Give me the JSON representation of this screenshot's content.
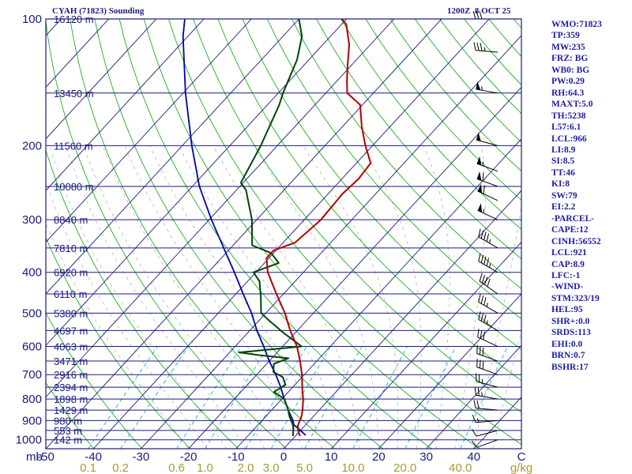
{
  "header": {
    "station": "CYAH (71823) Sounding",
    "time": "1200Z  8 OCT 25"
  },
  "indices": [
    "WMO:71823",
    "TP:359",
    "MW:235",
    "FRZ: BG",
    "WB0: BG",
    "PW:0.29",
    "RH:64.3",
    "MAXT:5.0",
    "TH:5238",
    "L57:6.1",
    "LCL:966",
    "LI:8.9",
    "SI:8.5",
    "TT:46",
    "KI:8",
    "SW:79",
    "EI:2.2",
    "-PARCEL-",
    "CAPE:12",
    "CINH:56552",
    "LCL:921",
    "CAP:8.9",
    "LFC:-1",
    "-WIND-",
    "STM:323/19",
    "HEL:95",
    "SHR+:0.0",
    "SRDS:113",
    "EHI:0.0",
    "BRN:0.7",
    "BSHR:17"
  ],
  "colors": {
    "pressure_lines": "#1a1a80",
    "temperature_lines": "#1a1a80",
    "dry_adiabats": "#00aa00",
    "moist_adiabats": "#aaaaaa",
    "mixing_ratio": "#00aabb",
    "temperature_trace": "#b00000",
    "dewpoint_trace": "#004400",
    "parcel_trace": "#0000aa",
    "wind_barbs": "#000000",
    "labels": "#1a1a80",
    "mixing_labels": "#aa9933"
  },
  "chart_data": {
    "type": "skew-t",
    "pressure_tick_labels": [
      "100",
      "200",
      "300",
      "400",
      "500",
      "600",
      "700",
      "800",
      "900",
      "1000"
    ],
    "pressure_unit_label": "mb",
    "temperature_tick_labels": [
      "-50",
      "-40",
      "-30",
      "-20",
      "-10",
      "0",
      "10",
      "20",
      "30",
      "40",
      "C"
    ],
    "mixing_ratio_labels": [
      "0.1",
      "0.2",
      "0.6",
      "1.0",
      "2.0",
      "3.0",
      "5.0",
      "10.0",
      "20.0",
      "40.0",
      "g/kg"
    ],
    "mixing_ratio_values": [
      0.1,
      0.2,
      0.6,
      1.0,
      2.0,
      3.0,
      5.0,
      10.0,
      20.0,
      40.0
    ],
    "height_labels": [
      {
        "p": 100,
        "label": "16120 m"
      },
      {
        "p": 150,
        "label": "13450 m"
      },
      {
        "p": 200,
        "label": "11560 m"
      },
      {
        "p": 250,
        "label": "10080 m"
      },
      {
        "p": 300,
        "label": "8840 m"
      },
      {
        "p": 350,
        "label": "7810 m"
      },
      {
        "p": 400,
        "label": "6920 m"
      },
      {
        "p": 450,
        "label": "6110 m"
      },
      {
        "p": 500,
        "label": "5380 m"
      },
      {
        "p": 550,
        "label": "4697 m"
      },
      {
        "p": 600,
        "label": "4063 m"
      },
      {
        "p": 650,
        "label": "3471 m"
      },
      {
        "p": 700,
        "label": "2916 m"
      },
      {
        "p": 750,
        "label": "2394 m"
      },
      {
        "p": 800,
        "label": "1898 m"
      },
      {
        "p": 850,
        "label": "1429 m"
      },
      {
        "p": 900,
        "label": "980 m"
      },
      {
        "p": 950,
        "label": "553 m"
      },
      {
        "p": 1000,
        "label": "142 m"
      }
    ],
    "p_range": [
      100,
      1050
    ],
    "t_range_at_base": [
      -50,
      50
    ],
    "temperature": [
      {
        "p": 980,
        "t": 1.0
      },
      {
        "p": 950,
        "t": -0.5
      },
      {
        "p": 925,
        "t": -1.5
      },
      {
        "p": 880,
        "t": -2.5
      },
      {
        "p": 850,
        "t": -3.5
      },
      {
        "p": 800,
        "t": -5.5
      },
      {
        "p": 760,
        "t": -7.5
      },
      {
        "p": 700,
        "t": -10.5
      },
      {
        "p": 650,
        "t": -13.5
      },
      {
        "p": 600,
        "t": -17.0
      },
      {
        "p": 550,
        "t": -21.5
      },
      {
        "p": 500,
        "t": -26.0
      },
      {
        "p": 450,
        "t": -31.5
      },
      {
        "p": 400,
        "t": -37.5
      },
      {
        "p": 370,
        "t": -40.5
      },
      {
        "p": 355,
        "t": -40.5
      },
      {
        "p": 340,
        "t": -37.5
      },
      {
        "p": 300,
        "t": -36.5
      },
      {
        "p": 260,
        "t": -37.0
      },
      {
        "p": 240,
        "t": -36.5
      },
      {
        "p": 220,
        "t": -37.0
      },
      {
        "p": 200,
        "t": -41.5
      },
      {
        "p": 180,
        "t": -46.0
      },
      {
        "p": 160,
        "t": -50.5
      },
      {
        "p": 150,
        "t": -55.5
      },
      {
        "p": 140,
        "t": -58.0
      },
      {
        "p": 130,
        "t": -60.5
      },
      {
        "p": 115,
        "t": -64.5
      },
      {
        "p": 103,
        "t": -69.0
      },
      {
        "p": 100,
        "t": -71.0
      }
    ],
    "dewpoint": [
      {
        "p": 980,
        "t": -0.5
      },
      {
        "p": 950,
        "t": -1.5
      },
      {
        "p": 925,
        "t": -2.5
      },
      {
        "p": 880,
        "t": -5.0
      },
      {
        "p": 850,
        "t": -6.5
      },
      {
        "p": 800,
        "t": -9.5
      },
      {
        "p": 770,
        "t": -13.0
      },
      {
        "p": 740,
        "t": -12.0
      },
      {
        "p": 710,
        "t": -14.0
      },
      {
        "p": 690,
        "t": -17.0
      },
      {
        "p": 660,
        "t": -18.5
      },
      {
        "p": 640,
        "t": -16.5
      },
      {
        "p": 630,
        "t": -23.0
      },
      {
        "p": 620,
        "t": -28.0
      },
      {
        "p": 600,
        "t": -16.0
      },
      {
        "p": 560,
        "t": -22.0
      },
      {
        "p": 520,
        "t": -28.0
      },
      {
        "p": 500,
        "t": -31.0
      },
      {
        "p": 460,
        "t": -34.0
      },
      {
        "p": 420,
        "t": -37.5
      },
      {
        "p": 400,
        "t": -40.5
      },
      {
        "p": 380,
        "t": -37.0
      },
      {
        "p": 360,
        "t": -40.5
      },
      {
        "p": 345,
        "t": -46.0
      },
      {
        "p": 300,
        "t": -51.0
      },
      {
        "p": 255,
        "t": -58.0
      },
      {
        "p": 245,
        "t": -60.5
      },
      {
        "p": 200,
        "t": -63.5
      },
      {
        "p": 160,
        "t": -67.5
      },
      {
        "p": 150,
        "t": -69.0
      },
      {
        "p": 125,
        "t": -72.5
      },
      {
        "p": 110,
        "t": -76.0
      },
      {
        "p": 100,
        "t": -80.0
      }
    ],
    "parcel": [
      {
        "p": 975,
        "t": 2.0
      },
      {
        "p": 950,
        "t": 0.0
      },
      {
        "p": 921,
        "t": -2.5
      },
      {
        "p": 900,
        "t": -3.5
      },
      {
        "p": 850,
        "t": -6.5
      },
      {
        "p": 800,
        "t": -9.5
      },
      {
        "p": 750,
        "t": -12.5
      },
      {
        "p": 700,
        "t": -16.0
      },
      {
        "p": 650,
        "t": -20.0
      },
      {
        "p": 600,
        "t": -24.0
      },
      {
        "p": 550,
        "t": -28.5
      },
      {
        "p": 500,
        "t": -33.0
      },
      {
        "p": 450,
        "t": -38.5
      },
      {
        "p": 400,
        "t": -44.5
      },
      {
        "p": 350,
        "t": -51.5
      },
      {
        "p": 300,
        "t": -59.5
      },
      {
        "p": 250,
        "t": -68.5
      },
      {
        "p": 200,
        "t": -78.0
      },
      {
        "p": 150,
        "t": -89.5
      },
      {
        "p": 110,
        "t": -101.0
      },
      {
        "p": 100,
        "t": -104.0
      }
    ],
    "wind_barbs": [
      {
        "p": 1000,
        "dir": 250,
        "spd": 10
      },
      {
        "p": 950,
        "dir": 255,
        "spd": 10
      },
      {
        "p": 900,
        "dir": 265,
        "spd": 15
      },
      {
        "p": 850,
        "dir": 275,
        "spd": 20
      },
      {
        "p": 800,
        "dir": 280,
        "spd": 25
      },
      {
        "p": 750,
        "dir": 285,
        "spd": 25
      },
      {
        "p": 700,
        "dir": 290,
        "spd": 30
      },
      {
        "p": 650,
        "dir": 290,
        "spd": 30
      },
      {
        "p": 600,
        "dir": 295,
        "spd": 30
      },
      {
        "p": 550,
        "dir": 300,
        "spd": 35
      },
      {
        "p": 500,
        "dir": 300,
        "spd": 35
      },
      {
        "p": 450,
        "dir": 305,
        "spd": 40
      },
      {
        "p": 400,
        "dir": 300,
        "spd": 45
      },
      {
        "p": 350,
        "dir": 300,
        "spd": 45
      },
      {
        "p": 300,
        "dir": 295,
        "spd": 55
      },
      {
        "p": 270,
        "dir": 295,
        "spd": 60
      },
      {
        "p": 250,
        "dir": 290,
        "spd": 60
      },
      {
        "p": 230,
        "dir": 290,
        "spd": 55
      },
      {
        "p": 200,
        "dir": 285,
        "spd": 50
      },
      {
        "p": 150,
        "dir": 280,
        "spd": 55
      },
      {
        "p": 120,
        "dir": 275,
        "spd": 35
      },
      {
        "p": 100,
        "dir": 270,
        "spd": 30
      }
    ]
  }
}
